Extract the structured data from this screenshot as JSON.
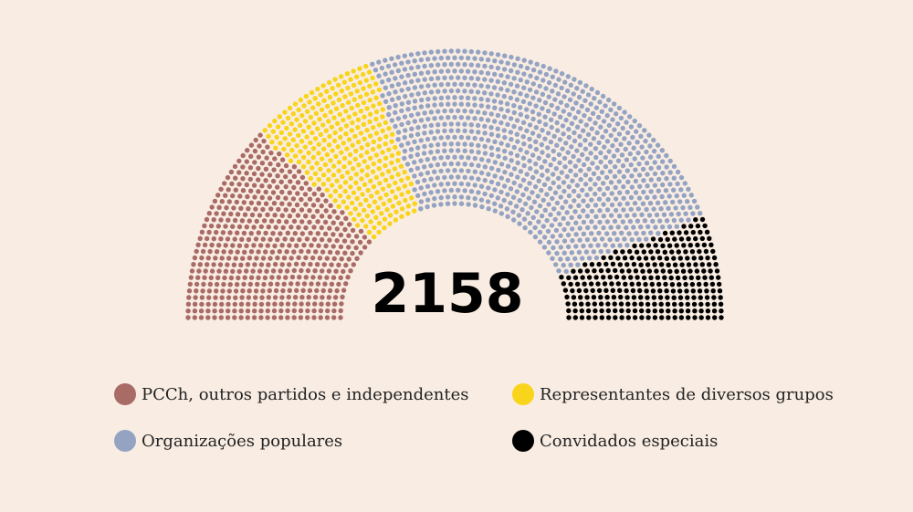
{
  "chart_data": {
    "type": "parliament",
    "total": 2158,
    "series": [
      {
        "name": "PCCh, outros partidos e independentes",
        "color": "#a96b66",
        "values": [
          527
        ]
      },
      {
        "name": "Representantes de diversos grupos",
        "color": "#f8d41a",
        "values": [
          336
        ]
      },
      {
        "name": "Organizações populares",
        "color": "#94a3c2",
        "values": [
          1019
        ]
      },
      {
        "name": "Convidados especiais",
        "color": "#000000",
        "values": [
          276
        ]
      }
    ]
  }
}
